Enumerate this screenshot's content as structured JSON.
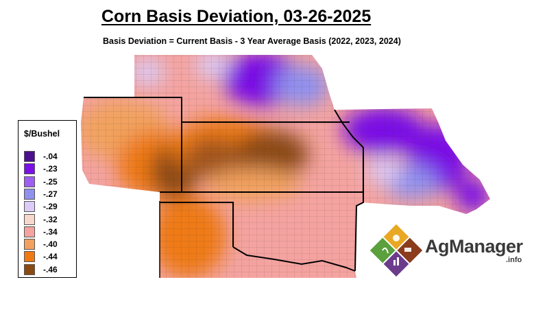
{
  "title": "Corn Basis Deviation, 03-26-2025",
  "subtitle": "Basis Deviation = Current Basis - 3 Year Average Basis (2022, 2023, 2024)",
  "legend": {
    "title": "$/Bushel",
    "items": [
      {
        "label": "-.04",
        "color": "#4b0f8f"
      },
      {
        "label": "-.23",
        "color": "#7a10e6"
      },
      {
        "label": "-.25",
        "color": "#9e5ef2"
      },
      {
        "label": "-.27",
        "color": "#9090ee"
      },
      {
        "label": "-.29",
        "color": "#dccbf6"
      },
      {
        "label": "-.32",
        "color": "#f6d9cc"
      },
      {
        "label": "-.34",
        "color": "#f4a3a0"
      },
      {
        "label": "-.40",
        "color": "#f2a25e"
      },
      {
        "label": "-.44",
        "color": "#ef7a12"
      },
      {
        "label": "-.46",
        "color": "#8b4a12"
      }
    ]
  },
  "logo": {
    "name": "AgManager",
    "suffix": ".info"
  }
}
